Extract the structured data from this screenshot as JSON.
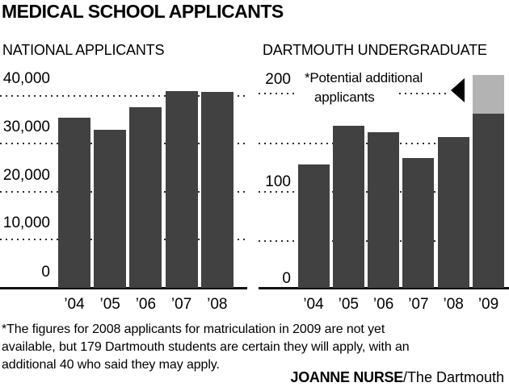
{
  "title": "MEDICAL SCHOOL APPLICANTS",
  "colors": {
    "bar_dark": "#414141",
    "bar_light": "#b3b3b3",
    "grid_dots": "#2e2e2e",
    "axis": "#111111",
    "text": "#000000",
    "background": "#ffffff"
  },
  "chart_data": [
    {
      "type": "bar",
      "title": "NATIONAL APPLICANTS",
      "categories": [
        "’04",
        "’05",
        "’06",
        "’07",
        "’08"
      ],
      "values": [
        35500,
        33000,
        37600,
        41000,
        40800
      ],
      "bar_color": "#414141",
      "yticks": [
        40000,
        30000,
        20000,
        10000,
        0
      ],
      "ytick_labels": [
        "40,000",
        "30,000",
        "20,000",
        "10,000",
        "0"
      ],
      "ylim": [
        0,
        42000
      ],
      "grid": "horizontal dotted lines at each 10,000",
      "legend": "none"
    },
    {
      "type": "bar",
      "title": "DARTMOUTH UNDERGRADUATE",
      "categories": [
        "’04",
        "’05",
        "’06",
        "’07",
        "’08",
        "’09"
      ],
      "stacked": true,
      "series": [
        {
          "name": "Applicants (certain)",
          "values": [
            127,
            167,
            160,
            134,
            155,
            179
          ],
          "color": "#414141"
        },
        {
          "name": "Potential additional applicants",
          "values": [
            0,
            0,
            0,
            0,
            0,
            40
          ],
          "color": "#b3b3b3"
        }
      ],
      "yticks": [
        200,
        100,
        0
      ],
      "ytick_labels": [
        "200",
        "100",
        "0"
      ],
      "gridline_values": [
        200,
        150,
        100,
        50
      ],
      "ylim": [
        0,
        220
      ],
      "grid": "horizontal dotted lines every 50",
      "annotation": {
        "lines": [
          "*Potential additional",
          "applicants"
        ],
        "arrow": "black triangle pointing left at gray top segment of ’09 bar"
      }
    }
  ],
  "footnote": {
    "lines": [
      "*The figures for 2008 applicants for matriculation in 2009 are not yet",
      "available, but 179 Dartmouth students are certain they will apply, with an",
      "additional 40 who said they may apply."
    ]
  },
  "credit": {
    "bold": "JOANNE NURSE",
    "rest": "/The Dartmouth"
  }
}
